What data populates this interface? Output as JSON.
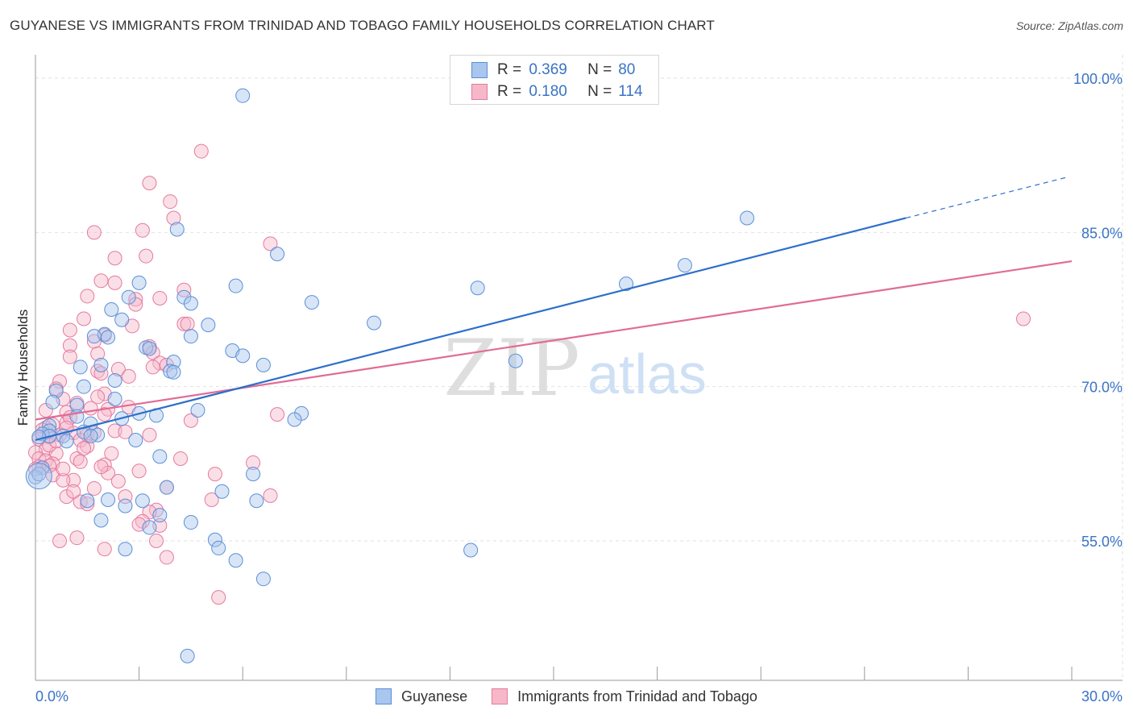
{
  "title": "GUYANESE VS IMMIGRANTS FROM TRINIDAD AND TOBAGO FAMILY HOUSEHOLDS CORRELATION CHART",
  "source": "Source: ZipAtlas.com",
  "watermark": {
    "zip": "ZIP",
    "atlas": "atlas"
  },
  "legend": {
    "r_label": "R =",
    "n_label": "N =",
    "rows": [
      {
        "r": "0.369",
        "n": "80"
      },
      {
        "r": "0.180",
        "n": "114"
      }
    ]
  },
  "chart_data": {
    "type": "scatter",
    "xlabel": "",
    "ylabel": "Family Households",
    "xlim": [
      0,
      30
    ],
    "ylim": [
      43.5,
      101.5
    ],
    "x_tick_labels": [
      "0.0%",
      "30.0%"
    ],
    "y_ticks": [
      55,
      70,
      85,
      100
    ],
    "y_tick_labels": [
      "55.0%",
      "70.0%",
      "85.0%",
      "100.0%"
    ],
    "grid": true,
    "legend_position": "bottom",
    "colors": {
      "guyanese_fill": "#a9c6ee",
      "guyanese_stroke": "#5b8fd6",
      "guyanese_line": "#2d6fcb",
      "trinidad_fill": "#f6b8c9",
      "trinidad_stroke": "#e47aa0",
      "trinidad_line": "#e06c95",
      "axis_value": "#3a73c4",
      "grid": "#e2e2e2"
    },
    "series": [
      {
        "name": "Guyanese",
        "trend": {
          "x0": 0,
          "y0": 64.8,
          "x1": 25.2,
          "y1": 86.4,
          "x_dash_end": 29.9,
          "y_dash_end": 90.4
        },
        "points": [
          [
            6.0,
            98.3
          ],
          [
            4.1,
            85.3
          ],
          [
            20.6,
            86.4
          ],
          [
            7.0,
            82.9
          ],
          [
            18.8,
            81.8
          ],
          [
            17.1,
            80.0
          ],
          [
            12.8,
            79.6
          ],
          [
            5.8,
            79.8
          ],
          [
            3.0,
            80.1
          ],
          [
            2.7,
            78.7
          ],
          [
            4.3,
            78.7
          ],
          [
            8.0,
            78.2
          ],
          [
            4.5,
            78.1
          ],
          [
            2.2,
            77.5
          ],
          [
            2.5,
            76.5
          ],
          [
            9.8,
            76.2
          ],
          [
            5.0,
            76.0
          ],
          [
            2.0,
            75.1
          ],
          [
            1.7,
            74.9
          ],
          [
            2.1,
            74.8
          ],
          [
            4.5,
            74.9
          ],
          [
            3.2,
            73.8
          ],
          [
            3.3,
            73.7
          ],
          [
            5.7,
            73.5
          ],
          [
            6.0,
            73.0
          ],
          [
            13.9,
            72.5
          ],
          [
            4.0,
            72.4
          ],
          [
            6.6,
            72.1
          ],
          [
            1.9,
            72.1
          ],
          [
            1.3,
            71.9
          ],
          [
            3.9,
            71.5
          ],
          [
            4.0,
            71.4
          ],
          [
            2.3,
            70.6
          ],
          [
            1.4,
            70.0
          ],
          [
            0.6,
            69.6
          ],
          [
            2.3,
            68.8
          ],
          [
            0.5,
            68.5
          ],
          [
            1.2,
            68.2
          ],
          [
            4.7,
            67.7
          ],
          [
            3.0,
            67.4
          ],
          [
            7.7,
            67.4
          ],
          [
            3.5,
            67.2
          ],
          [
            1.2,
            67.1
          ],
          [
            2.5,
            66.9
          ],
          [
            7.5,
            66.8
          ],
          [
            1.6,
            66.4
          ],
          [
            0.4,
            66.2
          ],
          [
            0.4,
            65.7
          ],
          [
            1.4,
            65.6
          ],
          [
            0.2,
            65.4
          ],
          [
            0.4,
            65.2
          ],
          [
            0.8,
            65.2
          ],
          [
            1.8,
            65.3
          ],
          [
            1.6,
            65.2
          ],
          [
            0.1,
            65.1
          ],
          [
            0.9,
            64.7
          ],
          [
            2.9,
            64.8
          ],
          [
            3.6,
            63.2
          ],
          [
            0.2,
            62.1
          ],
          [
            6.3,
            61.5
          ],
          [
            0.0,
            61.2
          ],
          [
            3.8,
            60.2
          ],
          [
            5.4,
            59.8
          ],
          [
            2.1,
            59.0
          ],
          [
            3.1,
            58.9
          ],
          [
            6.4,
            58.9
          ],
          [
            1.5,
            58.9
          ],
          [
            2.6,
            58.4
          ],
          [
            3.6,
            57.5
          ],
          [
            1.9,
            57.0
          ],
          [
            4.5,
            56.8
          ],
          [
            3.3,
            56.3
          ],
          [
            5.2,
            55.1
          ],
          [
            2.6,
            54.2
          ],
          [
            5.3,
            54.3
          ],
          [
            12.6,
            54.1
          ],
          [
            5.8,
            53.1
          ],
          [
            6.6,
            51.3
          ],
          [
            4.4,
            43.8
          ],
          [
            0.1,
            61.5
          ]
        ]
      },
      {
        "name": "Immigrants from Trinidad and Tobago",
        "trend": {
          "x0": 0,
          "y0": 66.8,
          "x1": 30.0,
          "y1": 82.2
        },
        "points": [
          [
            4.8,
            92.9
          ],
          [
            3.3,
            89.8
          ],
          [
            3.9,
            88.0
          ],
          [
            4.0,
            86.4
          ],
          [
            3.1,
            85.2
          ],
          [
            1.7,
            85.0
          ],
          [
            6.8,
            83.9
          ],
          [
            3.2,
            82.7
          ],
          [
            2.3,
            82.5
          ],
          [
            1.9,
            80.3
          ],
          [
            2.3,
            80.1
          ],
          [
            4.3,
            79.4
          ],
          [
            1.5,
            78.8
          ],
          [
            2.9,
            78.5
          ],
          [
            3.6,
            78.6
          ],
          [
            2.9,
            78.0
          ],
          [
            28.6,
            76.6
          ],
          [
            1.4,
            76.6
          ],
          [
            4.3,
            76.1
          ],
          [
            4.4,
            76.1
          ],
          [
            2.8,
            75.9
          ],
          [
            1.0,
            75.5
          ],
          [
            2.0,
            75.0
          ],
          [
            1.7,
            74.4
          ],
          [
            1.0,
            74.0
          ],
          [
            3.3,
            73.9
          ],
          [
            3.4,
            73.3
          ],
          [
            1.8,
            73.2
          ],
          [
            1.0,
            72.9
          ],
          [
            3.6,
            72.3
          ],
          [
            3.8,
            72.1
          ],
          [
            3.4,
            71.9
          ],
          [
            2.4,
            71.7
          ],
          [
            1.8,
            71.5
          ],
          [
            1.9,
            71.3
          ],
          [
            2.7,
            71.0
          ],
          [
            0.7,
            70.5
          ],
          [
            0.6,
            69.8
          ],
          [
            2.0,
            69.3
          ],
          [
            0.8,
            68.8
          ],
          [
            1.8,
            69.0
          ],
          [
            1.2,
            68.4
          ],
          [
            2.7,
            68.0
          ],
          [
            2.1,
            67.8
          ],
          [
            1.6,
            67.9
          ],
          [
            0.3,
            67.7
          ],
          [
            0.9,
            67.5
          ],
          [
            2.0,
            67.3
          ],
          [
            7.0,
            67.3
          ],
          [
            4.5,
            66.7
          ],
          [
            0.9,
            66.5
          ],
          [
            0.5,
            66.3
          ],
          [
            0.3,
            66.0
          ],
          [
            0.2,
            65.8
          ],
          [
            2.3,
            65.7
          ],
          [
            2.6,
            65.6
          ],
          [
            1.1,
            65.5
          ],
          [
            3.3,
            65.3
          ],
          [
            0.7,
            65.3
          ],
          [
            1.5,
            65.3
          ],
          [
            0.4,
            65.1
          ],
          [
            0.1,
            64.9
          ],
          [
            1.3,
            64.8
          ],
          [
            1.5,
            64.2
          ],
          [
            0.3,
            63.9
          ],
          [
            0.0,
            63.6
          ],
          [
            0.6,
            63.5
          ],
          [
            0.1,
            63.0
          ],
          [
            1.2,
            63.0
          ],
          [
            4.2,
            63.0
          ],
          [
            0.3,
            62.8
          ],
          [
            1.3,
            62.7
          ],
          [
            6.3,
            62.6
          ],
          [
            0.5,
            62.5
          ],
          [
            0.4,
            62.3
          ],
          [
            0.1,
            62.2
          ],
          [
            2.0,
            62.4
          ],
          [
            0.0,
            62.0
          ],
          [
            2.1,
            61.6
          ],
          [
            0.5,
            61.4
          ],
          [
            5.2,
            61.5
          ],
          [
            1.1,
            60.9
          ],
          [
            0.8,
            60.9
          ],
          [
            2.4,
            60.8
          ],
          [
            3.8,
            60.2
          ],
          [
            1.7,
            60.1
          ],
          [
            6.8,
            59.4
          ],
          [
            0.9,
            59.3
          ],
          [
            2.6,
            59.3
          ],
          [
            5.1,
            59.0
          ],
          [
            1.3,
            58.8
          ],
          [
            1.5,
            58.6
          ],
          [
            3.5,
            58.0
          ],
          [
            3.3,
            57.8
          ],
          [
            3.1,
            56.9
          ],
          [
            3.0,
            56.6
          ],
          [
            3.6,
            56.5
          ],
          [
            1.2,
            55.3
          ],
          [
            0.7,
            55.0
          ],
          [
            3.5,
            55.0
          ],
          [
            2.0,
            54.2
          ],
          [
            3.8,
            53.4
          ],
          [
            5.3,
            49.5
          ],
          [
            0.4,
            64.3
          ],
          [
            1.0,
            67.0
          ],
          [
            0.9,
            66.0
          ],
          [
            1.7,
            65.5
          ],
          [
            0.6,
            64.7
          ],
          [
            1.4,
            64.0
          ],
          [
            2.2,
            63.5
          ],
          [
            0.8,
            62.0
          ],
          [
            1.9,
            62.2
          ],
          [
            3.0,
            61.8
          ],
          [
            1.1,
            59.8
          ]
        ]
      }
    ]
  }
}
